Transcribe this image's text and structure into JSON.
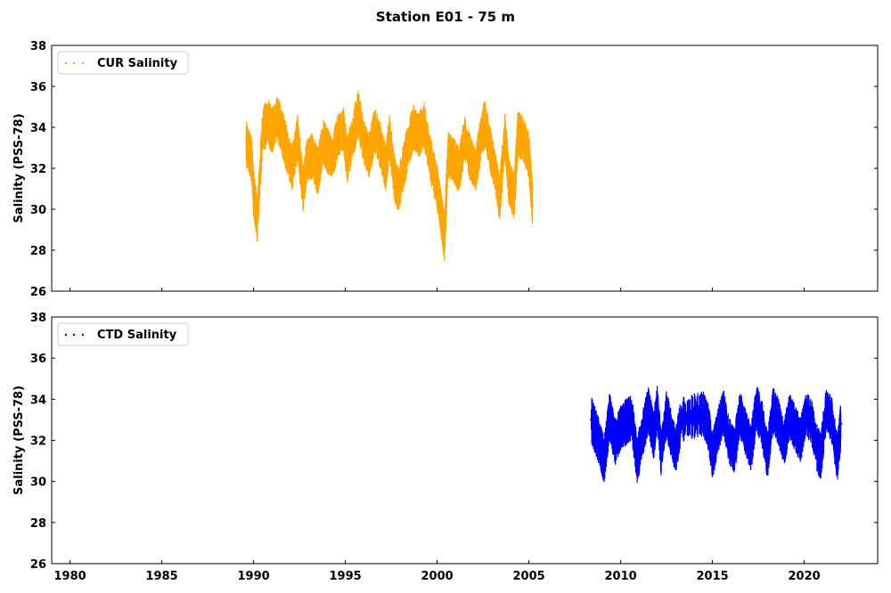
{
  "title": "Station E01 - 75 m",
  "chart_data": [
    {
      "type": "scatter",
      "ylabel": "Salinity (PSS-78)",
      "xlim": [
        1979,
        2024
      ],
      "ylim": [
        26,
        38
      ],
      "yticks": [
        26,
        28,
        30,
        32,
        34,
        36,
        38
      ],
      "xticks": [],
      "legend": "top-left",
      "series": [
        {
          "name": "CUR Salinity",
          "color": "#FFA500",
          "points": [
            [
              1989.6,
              33.2
            ],
            [
              1989.9,
              32.4
            ],
            [
              1990.0,
              30.8
            ],
            [
              1990.2,
              29.5
            ],
            [
              1990.5,
              33.9
            ],
            [
              1990.8,
              34.3
            ],
            [
              1991.0,
              33.8
            ],
            [
              1991.3,
              34.5
            ],
            [
              1991.6,
              33.6
            ],
            [
              1991.9,
              32.6
            ],
            [
              1992.1,
              32.0
            ],
            [
              1992.4,
              33.5
            ],
            [
              1992.7,
              30.9
            ],
            [
              1992.9,
              32.4
            ],
            [
              1993.2,
              32.6
            ],
            [
              1993.5,
              31.8
            ],
            [
              1993.8,
              33.3
            ],
            [
              1994.0,
              32.9
            ],
            [
              1994.3,
              32.5
            ],
            [
              1994.6,
              33.6
            ],
            [
              1994.9,
              33.9
            ],
            [
              1995.1,
              32.4
            ],
            [
              1995.4,
              33.5
            ],
            [
              1995.7,
              34.7
            ],
            [
              1996.0,
              33.3
            ],
            [
              1996.3,
              32.6
            ],
            [
              1996.6,
              33.9
            ],
            [
              1996.9,
              33.1
            ],
            [
              1997.2,
              32.0
            ],
            [
              1997.4,
              33.5
            ],
            [
              1997.7,
              31.4
            ],
            [
              1997.9,
              30.9
            ],
            [
              1998.1,
              31.8
            ],
            [
              1998.4,
              33.0
            ],
            [
              1998.7,
              34.0
            ],
            [
              1999.0,
              33.6
            ],
            [
              1999.3,
              34.1
            ],
            [
              1999.6,
              32.6
            ],
            [
              2000.0,
              31.1
            ],
            [
              2000.2,
              29.9
            ],
            [
              2000.4,
              28.6
            ],
            [
              2000.6,
              32.7
            ],
            [
              2000.9,
              32.4
            ],
            [
              2001.2,
              31.9
            ],
            [
              2001.5,
              33.5
            ],
            [
              2001.8,
              32.5
            ],
            [
              2002.1,
              31.9
            ],
            [
              2002.4,
              33.6
            ],
            [
              2002.6,
              34.2
            ],
            [
              2002.9,
              32.9
            ],
            [
              2003.2,
              31.7
            ],
            [
              2003.4,
              30.5
            ],
            [
              2003.7,
              33.6
            ],
            [
              2003.9,
              31.4
            ],
            [
              2004.2,
              30.6
            ],
            [
              2004.4,
              33.7
            ],
            [
              2004.7,
              33.4
            ],
            [
              2005.0,
              32.6
            ],
            [
              2005.2,
              30.2
            ]
          ]
        }
      ]
    },
    {
      "type": "scatter",
      "ylabel": "Salinity (PSS-78)",
      "xlim": [
        1979,
        2024
      ],
      "ylim": [
        26,
        38
      ],
      "yticks": [
        26,
        28,
        30,
        32,
        34,
        36,
        38
      ],
      "xticks": [
        1980,
        1985,
        1990,
        1995,
        2000,
        2005,
        2010,
        2015,
        2020
      ],
      "legend": "top-left",
      "series": [
        {
          "name": "CTD Salinity",
          "color": "#0000FF",
          "points": [
            [
              2008.4,
              33.0
            ],
            [
              2008.8,
              32.0
            ],
            [
              2009.1,
              31.0
            ],
            [
              2009.4,
              33.2
            ],
            [
              2009.7,
              31.9
            ],
            [
              2010.0,
              32.6
            ],
            [
              2010.3,
              32.9
            ],
            [
              2010.6,
              33.1
            ],
            [
              2010.9,
              31.0
            ],
            [
              2011.2,
              32.3
            ],
            [
              2011.5,
              33.5
            ],
            [
              2011.8,
              32.2
            ],
            [
              2012.0,
              33.6
            ],
            [
              2012.2,
              31.4
            ],
            [
              2012.5,
              33.3
            ],
            [
              2012.8,
              32.1
            ],
            [
              2013.0,
              31.5
            ],
            [
              2013.3,
              33.0
            ],
            [
              2014.5,
              33.3
            ],
            [
              2014.8,
              32.6
            ],
            [
              2015.0,
              31.2
            ],
            [
              2015.3,
              32.5
            ],
            [
              2015.6,
              33.4
            ],
            [
              2015.9,
              32.0
            ],
            [
              2016.2,
              31.5
            ],
            [
              2016.5,
              33.3
            ],
            [
              2016.8,
              32.4
            ],
            [
              2017.1,
              31.6
            ],
            [
              2017.4,
              33.6
            ],
            [
              2017.7,
              32.8
            ],
            [
              2018.0,
              31.2
            ],
            [
              2018.3,
              33.5
            ],
            [
              2018.6,
              32.9
            ],
            [
              2018.9,
              31.8
            ],
            [
              2019.2,
              33.2
            ],
            [
              2019.5,
              32.6
            ],
            [
              2019.8,
              32.0
            ],
            [
              2020.1,
              33.3
            ],
            [
              2020.4,
              32.9
            ],
            [
              2020.7,
              31.6
            ],
            [
              2020.9,
              31.2
            ],
            [
              2021.2,
              33.5
            ],
            [
              2021.5,
              33.0
            ],
            [
              2021.8,
              31.1
            ],
            [
              2022.0,
              32.8
            ]
          ]
        }
      ]
    }
  ]
}
